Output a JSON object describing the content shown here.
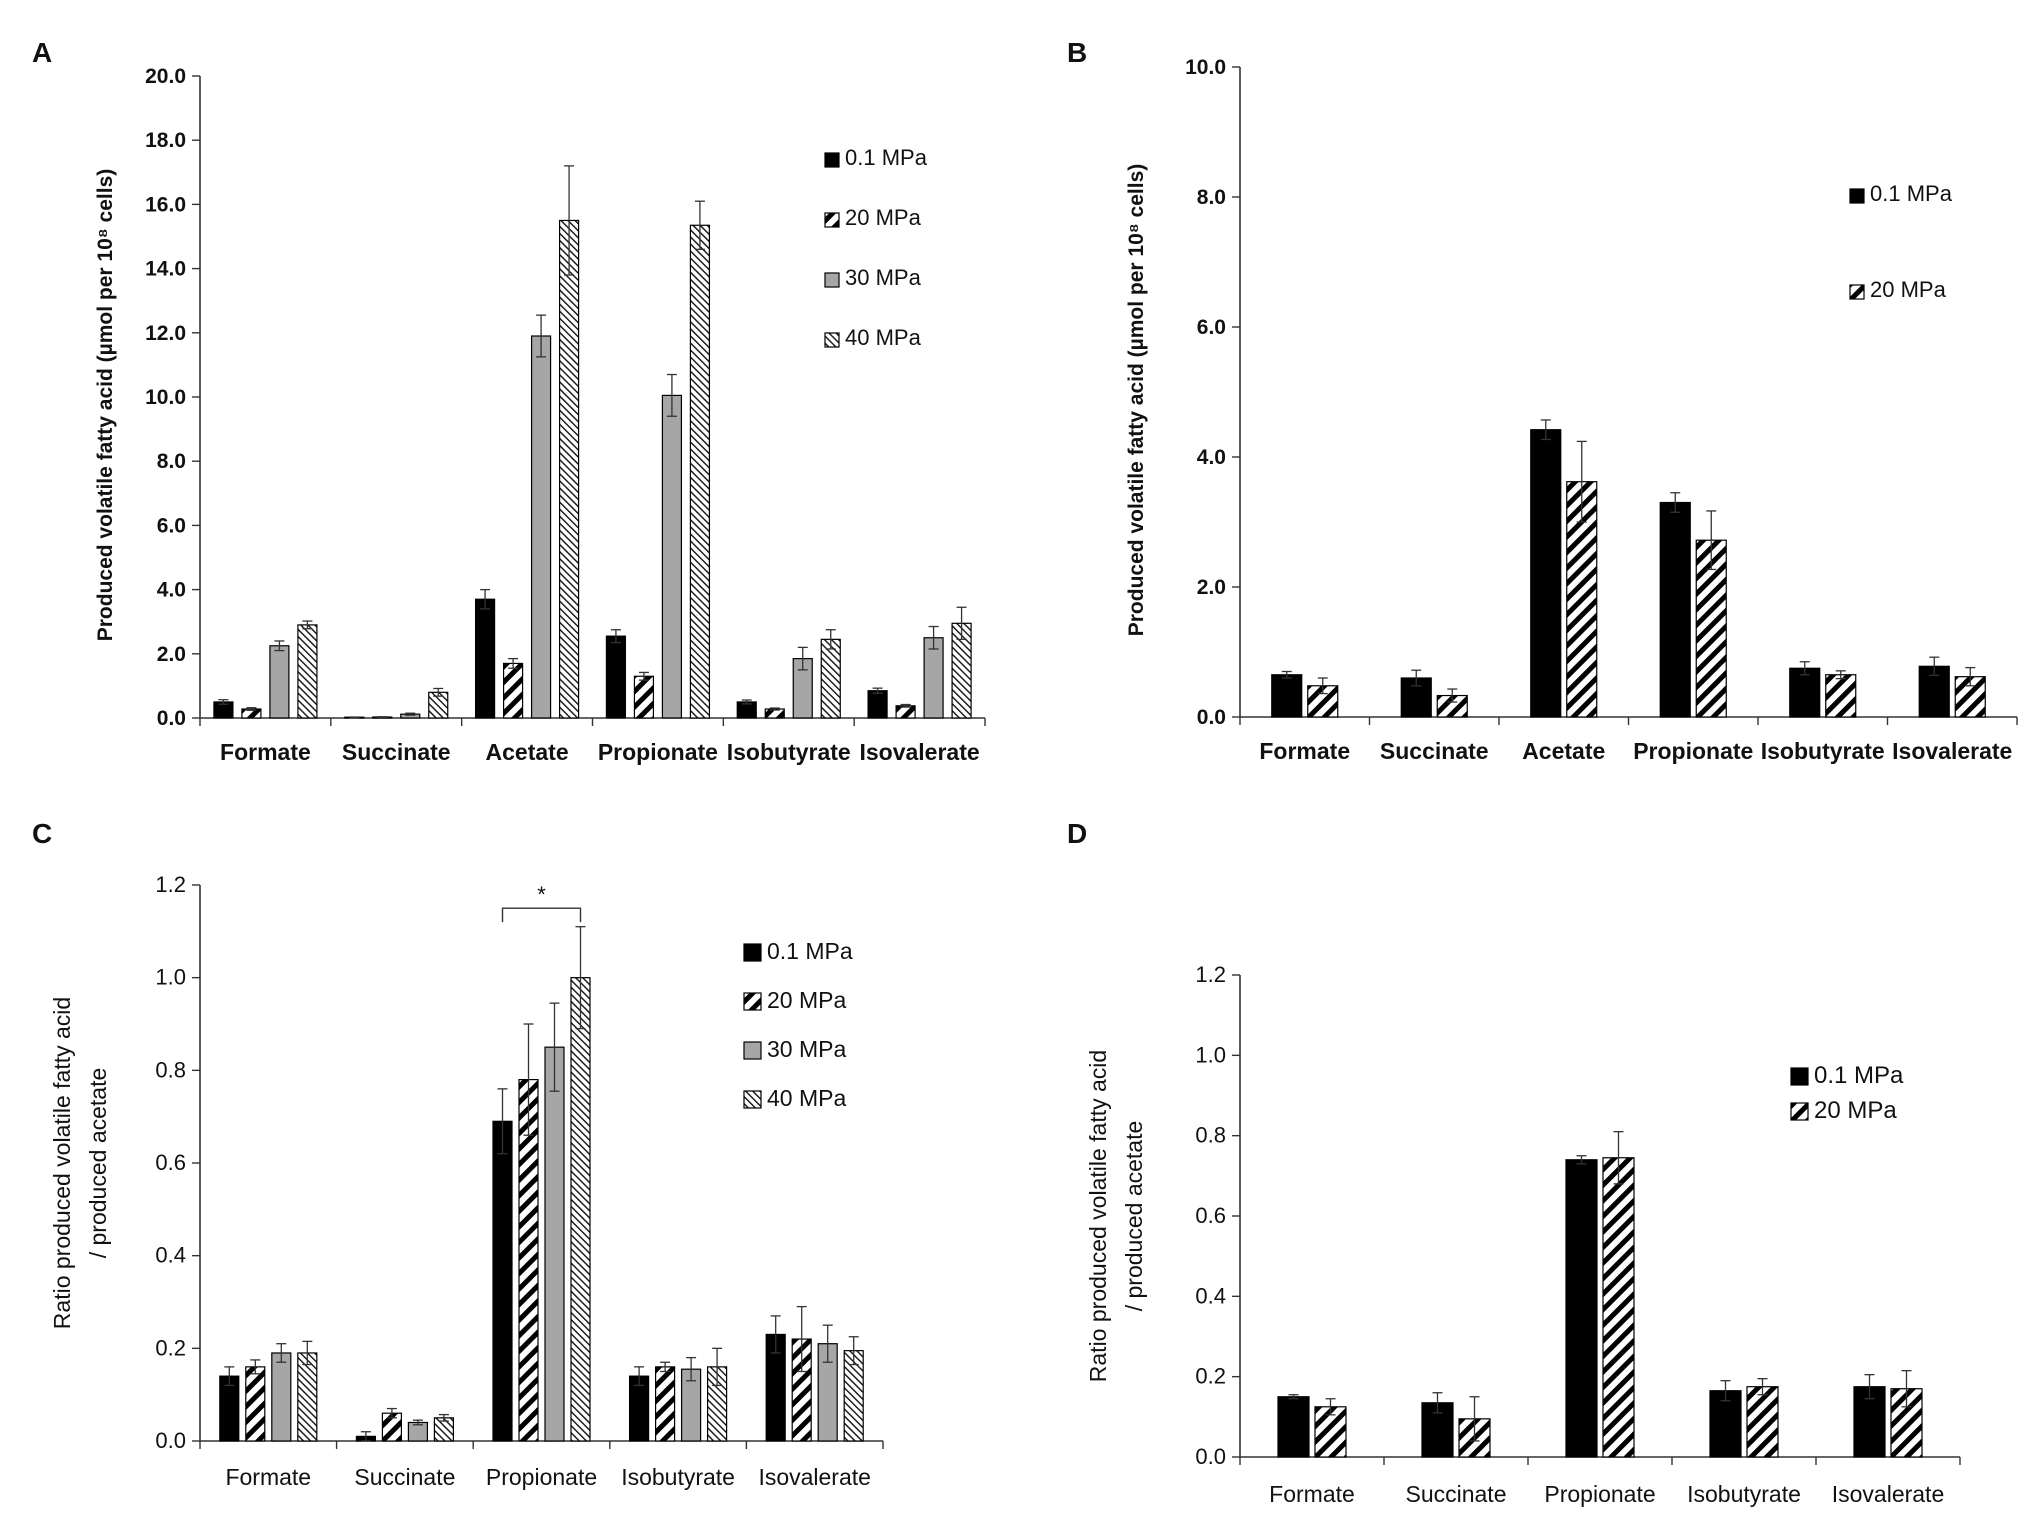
{
  "colors": {
    "black": "#000000",
    "gray": "#a6a6a6",
    "white": "#ffffff",
    "axis": "#333333"
  },
  "chart_data": [
    {
      "type": "bar",
      "panel": "A",
      "ylabel": "Produced volatile fatty acid (µmol per 10⁸ cells)",
      "ylim": [
        0,
        20
      ],
      "yticks": [
        "0.0",
        "2.0",
        "4.0",
        "6.0",
        "8.0",
        "10.0",
        "12.0",
        "14.0",
        "16.0",
        "18.0",
        "20.0"
      ],
      "ytick_step": 2,
      "categories": [
        "Formate",
        "Succinate",
        "Acetate",
        "Propionate",
        "Isobutyrate",
        "Isovalerate"
      ],
      "legend_position": "top-right",
      "bold_labels": true,
      "series": [
        {
          "name": "0.1 MPa",
          "pattern": "solid",
          "values": [
            0.5,
            0.02,
            3.7,
            2.55,
            0.5,
            0.85
          ],
          "errors": [
            0.07,
            0.01,
            0.3,
            0.2,
            0.06,
            0.08
          ]
        },
        {
          "name": "20 MPa",
          "pattern": "hatch",
          "values": [
            0.28,
            0.03,
            1.7,
            1.3,
            0.28,
            0.38
          ],
          "errors": [
            0.04,
            0.01,
            0.15,
            0.12,
            0.03,
            0.04
          ]
        },
        {
          "name": "30 MPa",
          "pattern": "gray",
          "values": [
            2.25,
            0.12,
            11.9,
            10.05,
            1.85,
            2.5
          ],
          "errors": [
            0.15,
            0.03,
            0.65,
            0.65,
            0.35,
            0.35
          ]
        },
        {
          "name": "40 MPa",
          "pattern": "crosshatch",
          "values": [
            2.9,
            0.8,
            15.5,
            15.35,
            2.45,
            2.95
          ],
          "errors": [
            0.12,
            0.12,
            1.7,
            0.75,
            0.3,
            0.5
          ]
        }
      ]
    },
    {
      "type": "bar",
      "panel": "B",
      "ylabel": "Produced volatile fatty acid (µmol per 10⁸ cells)",
      "ylim": [
        0,
        10
      ],
      "yticks": [
        "0.0",
        "2.0",
        "4.0",
        "6.0",
        "8.0",
        "10.0"
      ],
      "ytick_step": 2,
      "categories": [
        "Formate",
        "Succinate",
        "Acetate",
        "Propionate",
        "Isobutyrate",
        "Isovalerate"
      ],
      "legend_position": "top-right",
      "bold_labels": true,
      "series": [
        {
          "name": "0.1 MPa",
          "pattern": "solid",
          "values": [
            0.65,
            0.6,
            4.42,
            3.3,
            0.75,
            0.78
          ],
          "errors": [
            0.05,
            0.12,
            0.15,
            0.15,
            0.1,
            0.14
          ]
        },
        {
          "name": "20 MPa",
          "pattern": "hatch",
          "values": [
            0.48,
            0.33,
            3.62,
            2.72,
            0.65,
            0.62
          ],
          "errors": [
            0.12,
            0.1,
            0.62,
            0.45,
            0.06,
            0.14
          ]
        }
      ]
    },
    {
      "type": "bar",
      "panel": "C",
      "ylabel": "Ratio produced volatile fatty acid / produced acetate",
      "ylabel_lines": [
        "Ratio produced volatile fatty acid",
        "/ produced acetate"
      ],
      "ylim": [
        0,
        1.2
      ],
      "yticks": [
        "0.0",
        "0.2",
        "0.4",
        "0.6",
        "0.8",
        "1.0",
        "1.2"
      ],
      "ytick_step": 0.2,
      "categories": [
        "Formate",
        "Succinate",
        "Propionate",
        "Isobutyrate",
        "Isovalerate"
      ],
      "legend_position": "top-right",
      "bold_labels": false,
      "annotation": {
        "text": "*",
        "category": "Propionate",
        "from_series": 0,
        "to_series": 3,
        "y": 1.15
      },
      "series": [
        {
          "name": "0.1 MPa",
          "pattern": "solid",
          "values": [
            0.14,
            0.01,
            0.69,
            0.14,
            0.23
          ],
          "errors": [
            0.02,
            0.01,
            0.07,
            0.02,
            0.04
          ]
        },
        {
          "name": "20 MPa",
          "pattern": "hatch",
          "values": [
            0.16,
            0.06,
            0.78,
            0.16,
            0.22
          ],
          "errors": [
            0.015,
            0.01,
            0.12,
            0.01,
            0.07
          ]
        },
        {
          "name": "30 MPa",
          "pattern": "gray",
          "values": [
            0.19,
            0.04,
            0.85,
            0.155,
            0.21
          ],
          "errors": [
            0.02,
            0.005,
            0.095,
            0.025,
            0.04
          ]
        },
        {
          "name": "40 MPa",
          "pattern": "crosshatch",
          "values": [
            0.19,
            0.05,
            1.0,
            0.16,
            0.195
          ],
          "errors": [
            0.025,
            0.007,
            0.11,
            0.04,
            0.03
          ]
        }
      ]
    },
    {
      "type": "bar",
      "panel": "D",
      "ylabel": "Ratio produced volatile fatty acid / produced acetate",
      "ylabel_lines": [
        "Ratio produced volatile fatty acid",
        "/ produced acetate"
      ],
      "ylim": [
        0,
        1.2
      ],
      "yticks": [
        "0.0",
        "0.2",
        "0.4",
        "0.6",
        "0.8",
        "1.0",
        "1.2"
      ],
      "ytick_step": 0.2,
      "categories": [
        "Formate",
        "Succinate",
        "Propionate",
        "Isobutyrate",
        "Isovalerate"
      ],
      "legend_position": "top-right",
      "bold_labels": false,
      "series": [
        {
          "name": "0.1 MPa",
          "pattern": "solid",
          "values": [
            0.15,
            0.135,
            0.74,
            0.165,
            0.175
          ],
          "errors": [
            0.005,
            0.025,
            0.01,
            0.025,
            0.03
          ]
        },
        {
          "name": "20 MPa",
          "pattern": "hatch",
          "values": [
            0.125,
            0.095,
            0.745,
            0.175,
            0.17
          ],
          "errors": [
            0.02,
            0.055,
            0.065,
            0.02,
            0.045
          ]
        }
      ]
    }
  ]
}
